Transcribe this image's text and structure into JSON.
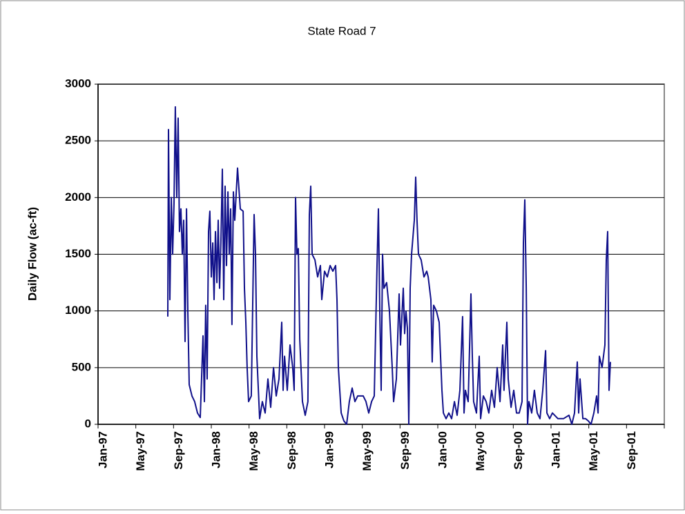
{
  "chart_data": {
    "type": "line",
    "title": "State Road 7",
    "y_label": "Daily Flow (ac-ft)",
    "xlim": [
      0,
      60
    ],
    "xticks": [
      {
        "value": 0,
        "label": "Jan-97"
      },
      {
        "value": 4,
        "label": "May-97"
      },
      {
        "value": 8,
        "label": "Sep-97"
      },
      {
        "value": 12,
        "label": "Jan-98"
      },
      {
        "value": 16,
        "label": "May-98"
      },
      {
        "value": 20,
        "label": "Sep-98"
      },
      {
        "value": 24,
        "label": "Jan-99"
      },
      {
        "value": 28,
        "label": "May-99"
      },
      {
        "value": 32,
        "label": "Sep-99"
      },
      {
        "value": 36,
        "label": "Jan-00"
      },
      {
        "value": 40,
        "label": "May-00"
      },
      {
        "value": 44,
        "label": "Sep-00"
      },
      {
        "value": 48,
        "label": "Jan-01"
      },
      {
        "value": 52,
        "label": "May-01"
      },
      {
        "value": 56,
        "label": "Sep-01"
      }
    ],
    "ylim": [
      0,
      3000
    ],
    "yticks": [
      0,
      500,
      1000,
      1500,
      2000,
      2500,
      3000
    ],
    "grid": true,
    "series": [
      {
        "color": "#10108a",
        "x": [
          7.39,
          7.46,
          7.61,
          7.76,
          7.9,
          8.05,
          8.19,
          8.34,
          8.49,
          8.63,
          8.78,
          8.93,
          9.07,
          9.22,
          9.37,
          9.51,
          9.66,
          9.95,
          10.24,
          10.54,
          10.83,
          11.12,
          11.27,
          11.41,
          11.56,
          11.71,
          11.85,
          12.0,
          12.15,
          12.29,
          12.44,
          12.59,
          12.73,
          12.88,
          13.02,
          13.17,
          13.32,
          13.46,
          13.61,
          13.76,
          13.9,
          14.05,
          14.19,
          14.34,
          14.49,
          14.78,
          15.07,
          15.37,
          15.51,
          15.66,
          15.8,
          15.95,
          16.24,
          16.54,
          16.68,
          16.83,
          17.12,
          17.41,
          17.71,
          18.0,
          18.29,
          18.59,
          18.88,
          19.17,
          19.46,
          19.61,
          19.76,
          20.05,
          20.34,
          20.63,
          20.78,
          20.93,
          21.07,
          21.22,
          21.37,
          21.66,
          21.95,
          22.24,
          22.39,
          22.54,
          22.68,
          22.98,
          23.27,
          23.56,
          23.71,
          24.0,
          24.29,
          24.59,
          24.88,
          25.17,
          25.32,
          25.46,
          25.76,
          26.05,
          26.34,
          26.63,
          26.93,
          27.22,
          27.51,
          27.8,
          28.1,
          28.39,
          28.68,
          28.98,
          29.27,
          29.56,
          29.71,
          29.85,
          30.0,
          30.15,
          30.29,
          30.58,
          30.88,
          31.17,
          31.32,
          31.61,
          31.9,
          32.05,
          32.34,
          32.49,
          32.63,
          32.78,
          32.93,
          33.07,
          33.22,
          33.51,
          33.66,
          33.8,
          33.95,
          34.24,
          34.54,
          34.83,
          34.98,
          35.27,
          35.41,
          35.56,
          35.85,
          36.15,
          36.44,
          36.59,
          36.88,
          37.17,
          37.46,
          37.76,
          38.05,
          38.34,
          38.63,
          38.78,
          38.93,
          39.22,
          39.51,
          39.66,
          39.8,
          40.1,
          40.39,
          40.54,
          40.83,
          41.12,
          41.41,
          41.71,
          42.0,
          42.29,
          42.59,
          42.88,
          43.02,
          43.32,
          43.46,
          43.76,
          44.05,
          44.34,
          44.63,
          44.93,
          45.07,
          45.22,
          45.37,
          45.51,
          45.66,
          45.95,
          46.24,
          46.54,
          46.83,
          47.12,
          47.42,
          47.56,
          47.85,
          48.15,
          48.73,
          49.32,
          49.9,
          50.2,
          50.49,
          50.78,
          50.93,
          51.07,
          51.37,
          51.66,
          51.95,
          52.24,
          52.54,
          52.83,
          52.98,
          53.12,
          53.41,
          53.71,
          53.85,
          54.0,
          54.15,
          54.29
        ],
        "values": [
          950,
          2600,
          1100,
          2000,
          1500,
          1950,
          2800,
          2000,
          2700,
          1700,
          1900,
          1500,
          1800,
          730,
          1900,
          1000,
          350,
          250,
          200,
          100,
          60,
          780,
          200,
          1050,
          400,
          1700,
          1880,
          1300,
          1600,
          1100,
          1700,
          1250,
          1800,
          1200,
          1600,
          2250,
          1100,
          2100,
          1400,
          2050,
          1500,
          1900,
          880,
          2050,
          1800,
          2260,
          1900,
          1880,
          1200,
          900,
          500,
          200,
          250,
          1850,
          1500,
          600,
          50,
          200,
          100,
          400,
          150,
          500,
          250,
          400,
          900,
          300,
          600,
          300,
          700,
          500,
          300,
          2000,
          1500,
          1550,
          750,
          200,
          80,
          200,
          1850,
          2100,
          1500,
          1450,
          1300,
          1400,
          1100,
          1350,
          1300,
          1400,
          1350,
          1400,
          1100,
          500,
          100,
          30,
          0,
          200,
          320,
          200,
          250,
          250,
          250,
          200,
          100,
          200,
          250,
          1400,
          1900,
          1000,
          300,
          1500,
          1200,
          1250,
          1000,
          500,
          200,
          400,
          1150,
          700,
          1200,
          800,
          1000,
          850,
          0,
          1200,
          1500,
          1800,
          2180,
          1800,
          1500,
          1450,
          1300,
          1350,
          1300,
          1100,
          550,
          1050,
          1000,
          900,
          300,
          100,
          50,
          100,
          50,
          200,
          80,
          300,
          950,
          100,
          300,
          200,
          1150,
          600,
          200,
          100,
          600,
          50,
          250,
          200,
          100,
          300,
          150,
          500,
          200,
          700,
          300,
          900,
          400,
          150,
          300,
          100,
          100,
          200,
          1600,
          1980,
          1200,
          0,
          200,
          100,
          300,
          100,
          50,
          300,
          650,
          100,
          50,
          100,
          50,
          50,
          80,
          0,
          100,
          550,
          100,
          400,
          50,
          50,
          30,
          0,
          100,
          250,
          100,
          600,
          500,
          700,
          1450,
          1700,
          300,
          550
        ]
      }
    ]
  }
}
